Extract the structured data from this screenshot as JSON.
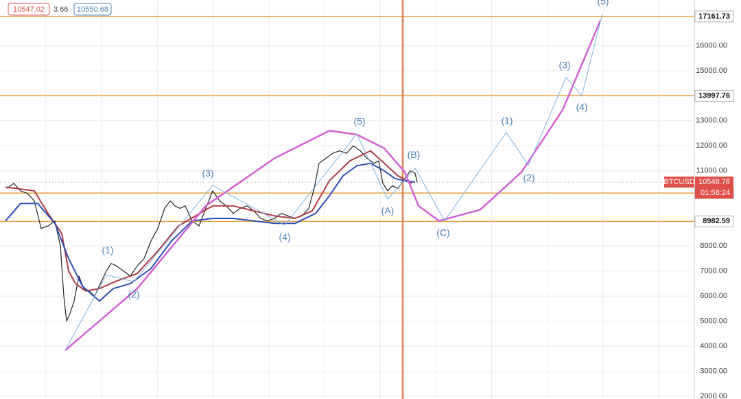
{
  "chart_data": {
    "type": "line",
    "symbol": "BTCUSD",
    "countdown": "01:58:24",
    "legend_values": [
      10547.02,
      3.66,
      10550.68
    ],
    "xlim": [
      0,
      202
    ],
    "ylim": [
      1890,
      17820
    ],
    "yticks": [
      {
        "value": 2000,
        "label": "2000.00"
      },
      {
        "value": 3000,
        "label": "3000.00"
      },
      {
        "value": 4000,
        "label": "4000.00"
      },
      {
        "value": 5000,
        "label": "5000.00"
      },
      {
        "value": 6000,
        "label": "6000.00"
      },
      {
        "value": 7000,
        "label": "7000.00"
      },
      {
        "value": 8000,
        "label": "8000.00"
      },
      {
        "value": 11000,
        "label": "11000.00"
      },
      {
        "value": 12000,
        "label": "12000.00"
      },
      {
        "value": 13000,
        "label": "13000.00"
      },
      {
        "value": 15000,
        "label": "15000.00"
      },
      {
        "value": 16000,
        "label": "16000.00"
      }
    ],
    "grid": true,
    "series": [
      {
        "color": "#222222",
        "width": 1.2,
        "x": [
          2,
          4,
          6,
          8,
          10,
          12,
          14,
          16,
          17.6,
          18.6,
          19.4,
          20.4,
          21.6,
          23,
          24.4,
          26,
          27.6,
          29.6,
          31,
          32.4,
          34,
          36,
          38,
          40,
          42,
          44,
          46,
          48,
          49.6,
          51,
          52.4,
          54,
          56,
          58,
          60,
          62,
          64,
          66,
          68,
          70,
          72,
          74,
          76,
          78,
          80,
          82,
          84,
          86,
          88,
          90,
          91.6,
          93,
          95,
          97,
          99,
          101,
          103,
          105,
          107,
          109,
          110.4,
          111.6,
          113,
          114.4,
          116,
          118,
          119.6,
          121,
          121.6
        ],
        "values": [
          10300,
          10500,
          10200,
          10100,
          9800,
          8700,
          8800,
          9000,
          8000,
          6000,
          5000,
          5300,
          5800,
          6800,
          6300,
          6200,
          6000,
          6600,
          7000,
          7300,
          7200,
          7000,
          6800,
          7200,
          7500,
          8200,
          8700,
          9500,
          9800,
          9600,
          9500,
          9600,
          9000,
          8800,
          9500,
          10200,
          9800,
          9600,
          9300,
          9500,
          9600,
          9400,
          9100,
          9000,
          9100,
          9300,
          9200,
          9100,
          9200,
          9500,
          10300,
          11300,
          11500,
          11700,
          11800,
          11700,
          12000,
          11800,
          11500,
          11300,
          11400,
          10500,
          10200,
          10400,
          10300,
          10700,
          11000,
          10900,
          10550
        ]
      },
      {
        "color": "#b03a48",
        "width": 2,
        "x": [
          1.6,
          10,
          14,
          18,
          20,
          22,
          25,
          29,
          34,
          40,
          46,
          52,
          57,
          62,
          68,
          74,
          80,
          86,
          91,
          96,
          102,
          108,
          112,
          116,
          120
        ],
        "values": [
          10350,
          10200,
          9300,
          8500,
          7000,
          6500,
          6200,
          6300,
          6600,
          6900,
          7800,
          8800,
          9200,
          9600,
          9600,
          9400,
          9200,
          9100,
          9400,
          10600,
          11400,
          11800,
          11300,
          10800,
          10500
        ]
      },
      {
        "color": "#2f4fb5",
        "width": 2,
        "x": [
          1.6,
          6,
          11,
          16,
          20,
          24,
          29,
          33,
          38,
          44,
          50,
          56,
          62,
          68,
          74,
          80,
          86,
          92,
          96,
          100,
          104,
          108,
          112,
          115,
          118,
          121
        ],
        "values": [
          9000,
          9700,
          9700,
          8900,
          7500,
          6400,
          5800,
          6300,
          6500,
          7100,
          8200,
          9000,
          9100,
          9100,
          9000,
          8900,
          8900,
          9300,
          10000,
          10800,
          11200,
          11300,
          11000,
          10700,
          10600,
          10550
        ]
      },
      {
        "color": "#d35fd6",
        "width": 2.5,
        "x": [
          19,
          40,
          60,
          80,
          96,
          104,
          112,
          118,
          122,
          128,
          140,
          152,
          164,
          175
        ],
        "values": [
          3830,
          6300,
          9600,
          11500,
          12600,
          12450,
          11900,
          10950,
          9600,
          9000,
          9450,
          10950,
          13430,
          17000
        ]
      },
      {
        "color": "#7fb0db",
        "width": 1,
        "x": [
          19,
          31,
          39,
          62,
          83,
          104,
          113,
          121,
          129.6,
          147.6,
          154,
          165,
          169.6,
          175.6
        ],
        "values": [
          3830,
          6850,
          6570,
          10420,
          8830,
          12470,
          9870,
          11110,
          9000,
          12540,
          11220,
          14730,
          14000,
          17270
        ]
      }
    ],
    "hlines": [
      {
        "value": 17161.73,
        "color": "#e8a040"
      },
      {
        "value": 13997.76,
        "color": "#e8a040"
      },
      {
        "value": 10111.84,
        "color": "#e8a040"
      },
      {
        "value": 8982.59,
        "color": "#e8a040"
      }
    ],
    "last_price": 10548.76,
    "vline_x": 117.4,
    "annotations": [
      {
        "text": "(1)",
        "x": 31.4,
        "y": 7800
      },
      {
        "text": "(2)",
        "x": 39,
        "y": 6030
      },
      {
        "text": "(3)",
        "x": 60.6,
        "y": 10880
      },
      {
        "text": "(4)",
        "x": 83,
        "y": 8330
      },
      {
        "text": "(5)",
        "x": 104.8,
        "y": 12940
      },
      {
        "text": "(A)",
        "x": 113,
        "y": 9380
      },
      {
        "text": "(B)",
        "x": 120.6,
        "y": 11620
      },
      {
        "text": "(C)",
        "x": 129.2,
        "y": 8500
      },
      {
        "text": "(1)",
        "x": 147.8,
        "y": 12970
      },
      {
        "text": "(2)",
        "x": 154.2,
        "y": 10690
      },
      {
        "text": "(3)",
        "x": 164.6,
        "y": 15190
      },
      {
        "text": "(4)",
        "x": 169.6,
        "y": 13520
      },
      {
        "text": "(5)",
        "x": 175.8,
        "y": 17740
      }
    ]
  }
}
